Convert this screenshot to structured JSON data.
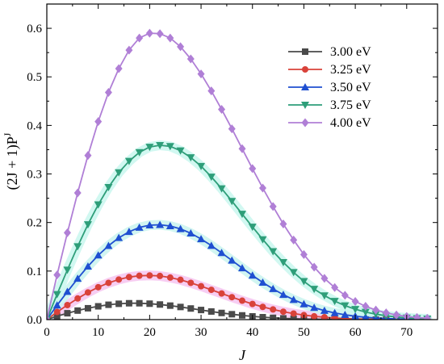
{
  "chart_data": {
    "type": "line",
    "xlabel": "J",
    "ylabel": "(2J + 1)P",
    "ylabel_superscript": "J",
    "xlim": [
      0,
      76
    ],
    "ylim": [
      0,
      0.65
    ],
    "xticks": [
      0,
      10,
      20,
      30,
      40,
      50,
      60,
      70
    ],
    "yticks": [
      0.0,
      0.1,
      0.2,
      0.3,
      0.4,
      0.5,
      0.6
    ],
    "xtick_labels": [
      "0",
      "10",
      "20",
      "30",
      "40",
      "50",
      "60",
      "70"
    ],
    "ytick_labels": [
      "0.0",
      "0.1",
      "0.2",
      "0.3",
      "0.4",
      "0.5",
      "0.6"
    ],
    "grid": false,
    "legend_position": "top-right",
    "series": [
      {
        "name": "3.00 eV",
        "color": "#4a4a4a",
        "marker": "square",
        "x": [
          0,
          2,
          4,
          6,
          8,
          10,
          12,
          14,
          16,
          18,
          20,
          22,
          24,
          26,
          28,
          30,
          32,
          34,
          36,
          38,
          40,
          42,
          44,
          46,
          48,
          50,
          52,
          54,
          56,
          58,
          60,
          62,
          64,
          66,
          68,
          70,
          72,
          74
        ],
        "y": [
          0.0,
          0.0072,
          0.0131,
          0.0186,
          0.0234,
          0.0274,
          0.0306,
          0.0326,
          0.0337,
          0.0337,
          0.0328,
          0.0311,
          0.0288,
          0.026,
          0.0229,
          0.0198,
          0.0167,
          0.0137,
          0.0111,
          0.0087,
          0.0067,
          0.005,
          0.0037,
          0.0026,
          0.0018,
          0.0012,
          0.0008,
          0.0005,
          0.0003,
          0.0002,
          0.0001,
          0.0001,
          0.0,
          0.0,
          0.0,
          0.0,
          0.0,
          0.0
        ]
      },
      {
        "name": "3.25 eV",
        "color": "#d9423a",
        "marker": "circle",
        "x": [
          0,
          2,
          4,
          6,
          8,
          10,
          12,
          14,
          16,
          18,
          20,
          22,
          24,
          26,
          28,
          30,
          32,
          34,
          36,
          38,
          40,
          42,
          44,
          46,
          48,
          50,
          52,
          54,
          56,
          58,
          60,
          62,
          64,
          66,
          68,
          70,
          72,
          74
        ],
        "y": [
          0.0,
          0.0157,
          0.0299,
          0.0436,
          0.056,
          0.0668,
          0.0757,
          0.0826,
          0.0876,
          0.0903,
          0.091,
          0.0899,
          0.0866,
          0.082,
          0.0757,
          0.0688,
          0.0614,
          0.0538,
          0.0462,
          0.039,
          0.0322,
          0.0262,
          0.0209,
          0.0163,
          0.0125,
          0.0093,
          0.0068,
          0.0049,
          0.0034,
          0.0023,
          0.0015,
          0.001,
          0.0006,
          0.0004,
          0.0002,
          0.0001,
          0.0001,
          0.0
        ]
      },
      {
        "name": "3.50 eV",
        "color": "#1f4fd1",
        "marker": "triangle-up",
        "x": [
          0,
          2,
          4,
          6,
          8,
          10,
          12,
          14,
          16,
          18,
          20,
          22,
          24,
          26,
          28,
          30,
          32,
          34,
          36,
          38,
          40,
          42,
          44,
          46,
          48,
          50,
          52,
          54,
          56,
          58,
          60,
          62,
          64,
          66,
          68,
          70,
          72,
          74
        ],
        "y": [
          0.0,
          0.0296,
          0.0576,
          0.0845,
          0.1098,
          0.1325,
          0.1521,
          0.1685,
          0.1809,
          0.1898,
          0.1945,
          0.1953,
          0.1929,
          0.1868,
          0.1778,
          0.166,
          0.1524,
          0.1375,
          0.1219,
          0.1062,
          0.091,
          0.0765,
          0.0634,
          0.0514,
          0.041,
          0.0321,
          0.0246,
          0.0185,
          0.0137,
          0.0099,
          0.007,
          0.0049,
          0.0034,
          0.0023,
          0.0015,
          0.001,
          0.0006,
          0.0004
        ]
      },
      {
        "name": "3.75 eV",
        "color": "#2e9e79",
        "marker": "triangle-down",
        "x": [
          0,
          2,
          4,
          6,
          8,
          10,
          12,
          14,
          16,
          18,
          20,
          22,
          24,
          26,
          28,
          30,
          32,
          34,
          36,
          38,
          40,
          42,
          44,
          46,
          48,
          50,
          52,
          54,
          56,
          58,
          60,
          62,
          64,
          66,
          68,
          70,
          72,
          74
        ],
        "y": [
          0.0,
          0.0522,
          0.1025,
          0.1507,
          0.196,
          0.2368,
          0.2726,
          0.303,
          0.3264,
          0.3445,
          0.3556,
          0.359,
          0.357,
          0.348,
          0.334,
          0.316,
          0.294,
          0.27,
          0.244,
          0.2175,
          0.191,
          0.165,
          0.1405,
          0.118,
          0.0975,
          0.079,
          0.063,
          0.0495,
          0.038,
          0.0288,
          0.0214,
          0.0156,
          0.0112,
          0.0079,
          0.0054,
          0.0037,
          0.0024,
          0.0016
        ]
      },
      {
        "name": "4.00 eV",
        "color": "#b07fd6",
        "marker": "diamond",
        "x": [
          0,
          2,
          4,
          6,
          8,
          10,
          12,
          14,
          16,
          18,
          20,
          22,
          24,
          26,
          28,
          30,
          32,
          34,
          36,
          38,
          40,
          42,
          44,
          46,
          48,
          50,
          52,
          54,
          56,
          58,
          60,
          62,
          64,
          66,
          68,
          70,
          72,
          74
        ],
        "y": [
          0.0,
          0.092,
          0.179,
          0.261,
          0.338,
          0.408,
          0.468,
          0.517,
          0.555,
          0.58,
          0.59,
          0.589,
          0.58,
          0.562,
          0.537,
          0.506,
          0.471,
          0.433,
          0.393,
          0.352,
          0.311,
          0.271,
          0.233,
          0.197,
          0.164,
          0.134,
          0.108,
          0.085,
          0.066,
          0.05,
          0.0375,
          0.0275,
          0.0197,
          0.0139,
          0.0096,
          0.0065,
          0.0043,
          0.0028
        ]
      }
    ]
  }
}
